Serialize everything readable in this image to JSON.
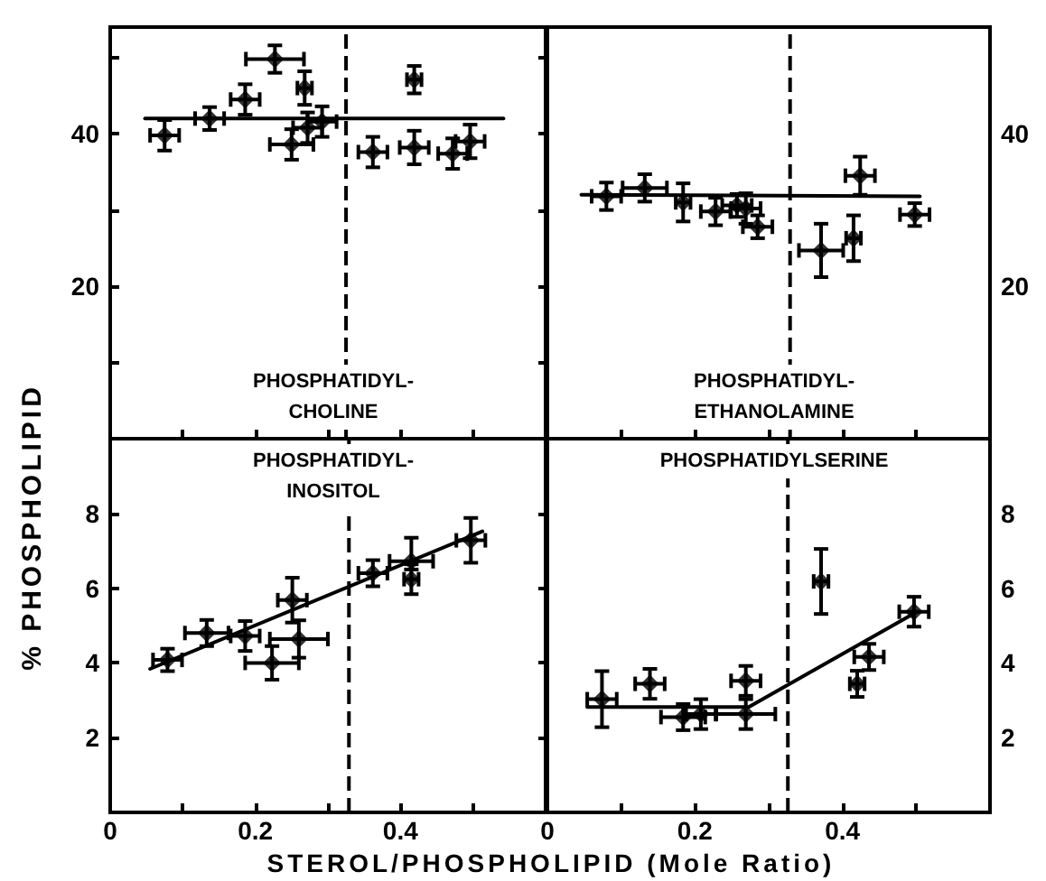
{
  "chart_data": [
    {
      "type": "scatter",
      "title": "PHOSPHATIDYL-\nCHOLINE",
      "ylabel": "% PHOSPHOLIPID",
      "xlim": [
        0,
        0.6
      ],
      "xticks": [
        0,
        {
          "value": 0.1,
          "label": null
        },
        0.2,
        {
          "value": 0.3,
          "label": null
        },
        0.4,
        {
          "value": 0.5,
          "label": null
        }
      ],
      "ylim": [
        0,
        54
      ],
      "yticks": [
        {
          "value": 10,
          "label": null
        },
        20,
        {
          "value": 30,
          "label": null
        },
        40,
        {
          "value": 50,
          "label": null
        }
      ],
      "tick_labels": "y",
      "marker": "diamond",
      "grid": false,
      "ref_lines": [
        {
          "axis": "x",
          "value": 0.325,
          "line_style": "dashed"
        }
      ],
      "series": [
        {
          "color": "#000000",
          "x": [
            0.075,
            0.137,
            0.186,
            0.227,
            0.268,
            0.25,
            0.272,
            0.292,
            0.362,
            0.419,
            0.419,
            0.472,
            0.496
          ],
          "values": [
            39.8,
            42.0,
            44.5,
            49.8,
            46.0,
            38.6,
            40.8,
            41.6,
            37.6,
            47.1,
            38.2,
            37.4,
            39.0
          ],
          "errors": [
            2,
            1.5,
            2,
            1.8,
            2.2,
            2,
            2,
            2,
            2,
            1.8,
            2.2,
            2,
            2.2
          ],
          "xerrors": [
            0.02,
            0.02,
            0.02,
            0.04,
            0.01,
            0.03,
            0.02,
            0.02,
            0.02,
            0.01,
            0.02,
            0.02,
            0.02
          ]
        },
        {
          "type": "line",
          "marker": "none",
          "color": "#000000",
          "x": [
            0.048,
            0.542
          ],
          "values": [
            42.0,
            42.0
          ]
        }
      ]
    },
    {
      "type": "scatter",
      "title": "PHOSPHATIDYL-\nETHANOLAMINE",
      "xlim": [
        0,
        0.6
      ],
      "xticks": [
        0,
        {
          "value": 0.1,
          "label": null
        },
        0.2,
        {
          "value": 0.3,
          "label": null
        },
        0.4,
        {
          "value": 0.5,
          "label": null
        }
      ],
      "ylim": [
        0,
        54
      ],
      "yticks": [
        {
          "value": 10,
          "label": null
        },
        20,
        {
          "value": 30,
          "label": null
        },
        40,
        {
          "value": 50,
          "label": null
        }
      ],
      "tick_labels": "y",
      "marker": "diamond",
      "grid": false,
      "ref_lines": [
        {
          "axis": "x",
          "value": 0.329,
          "line_style": "dashed"
        }
      ],
      "series": [
        {
          "color": "#000000",
          "x": [
            0.08,
            0.132,
            0.184,
            0.228,
            0.257,
            0.269,
            0.285,
            0.371,
            0.415,
            0.424,
            0.498
          ],
          "values": [
            31.8,
            32.9,
            31.0,
            29.8,
            30.6,
            30.2,
            27.8,
            24.7,
            26.3,
            34.5,
            29.4
          ],
          "errors": [
            1.8,
            1.8,
            2.5,
            1.8,
            1.5,
            2,
            1.5,
            3.5,
            3,
            2.5,
            1.5
          ],
          "xerrors": [
            0.02,
            0.03,
            0.01,
            0.02,
            0.02,
            0.02,
            0.02,
            0.03,
            0.01,
            0.02,
            0.02
          ]
        },
        {
          "type": "line",
          "marker": "none",
          "color": "#000000",
          "x": [
            0.046,
            0.505
          ],
          "values": [
            32.0,
            31.8
          ]
        }
      ]
    },
    {
      "type": "scatter",
      "title": "PHOSPHATIDYL-\nINOSITOL",
      "xlabel": "STEROL/PHOSPHOLIPID (Mole Ratio)",
      "xlim": [
        0,
        0.6
      ],
      "xticks": [
        0,
        {
          "value": 0.1,
          "label": null
        },
        0.2,
        {
          "value": 0.3,
          "label": null
        },
        0.4,
        {
          "value": 0.5,
          "label": null
        }
      ],
      "ylim": [
        0,
        10
      ],
      "yticks": [
        2,
        4,
        6,
        8
      ],
      "marker": "diamond",
      "grid": false,
      "ref_lines": [
        {
          "axis": "x",
          "value": 0.329,
          "line_style": "dashed"
        }
      ],
      "series": [
        {
          "color": "#000000",
          "x": [
            0.079,
            0.133,
            0.186,
            0.223,
            0.251,
            0.26,
            0.362,
            0.415,
            0.415,
            0.497
          ],
          "values": [
            4.08,
            4.8,
            4.72,
            4.0,
            5.68,
            4.64,
            6.4,
            6.72,
            6.24,
            7.28
          ],
          "errors": [
            0.3,
            0.35,
            0.4,
            0.45,
            0.6,
            0.5,
            0.35,
            [
              6.5,
              7.35
            ],
            0.4,
            0.6
          ],
          "xerrors": [
            0.02,
            0.03,
            0.02,
            0.037,
            0.02,
            0.04,
            0.02,
            0.03,
            0.01,
            0.02
          ]
        },
        {
          "type": "line",
          "marker": "none",
          "color": "#000000",
          "x": [
            0.055,
            0.513
          ],
          "values": [
            3.84,
            7.52
          ]
        }
      ]
    },
    {
      "type": "scatter",
      "title": "PHOSPHATIDYLSERINE",
      "xlim": [
        0,
        0.6
      ],
      "xticks": [
        0,
        {
          "value": 0.1,
          "label": null
        },
        0.2,
        {
          "value": 0.3,
          "label": null
        },
        0.4,
        {
          "value": 0.5,
          "label": null
        }
      ],
      "ylim": [
        0,
        10
      ],
      "yticks": [
        2,
        4,
        6,
        8
      ],
      "marker": "diamond",
      "grid": false,
      "ref_lines": [
        {
          "axis": "x",
          "value": 0.326,
          "line_style": "dashed"
        }
      ],
      "series": [
        {
          "color": "#000000",
          "x": [
            0.074,
            0.139,
            0.184,
            0.208,
            0.269,
            0.269,
            0.371,
            0.42,
            0.436,
            0.497
          ],
          "values": [
            3.03,
            3.44,
            2.55,
            2.63,
            3.52,
            2.63,
            6.18,
            3.44,
            4.16,
            5.37
          ],
          "errors": [
            0.75,
            0.4,
            0.35,
            0.4,
            0.4,
            0.4,
            0.87,
            0.35,
            0.35,
            0.4
          ],
          "xerrors": [
            0.02,
            0.02,
            0.03,
            0.02,
            0.02,
            0.04,
            0.01,
            0.01,
            0.02,
            0.02
          ]
        },
        {
          "type": "line",
          "marker": "none",
          "color": "#000000",
          "x": [
            0.054,
            0.273,
            0.501
          ],
          "values": [
            2.82,
            2.82,
            5.37
          ]
        }
      ]
    }
  ]
}
